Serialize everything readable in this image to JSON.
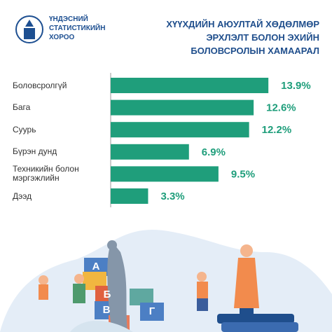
{
  "header": {
    "logo_lines": [
      "ҮНДЭСНИЙ",
      "СТАТИСТИКИЙН",
      "ХОРОО"
    ]
  },
  "chart_data": {
    "type": "bar",
    "orientation": "horizontal",
    "title_lines": [
      "ХҮҮХДИЙН АЮУЛТАЙ ХӨДӨЛМӨР",
      "ЭРХЛЭЛТ БОЛОН ЭХИЙН",
      "БОЛОВСРОЛЫН ХАМААРАЛ"
    ],
    "categories": [
      "Боловсролгүй",
      "Бага",
      "Суурь",
      "Бүрэн дунд",
      "Техникийн болон мэргэжлийн",
      "Дээд"
    ],
    "values": [
      13.9,
      12.6,
      12.2,
      6.9,
      9.5,
      3.3
    ],
    "value_labels": [
      "13.9%",
      "12.6%",
      "12.2%",
      "6.9%",
      "9.5%",
      "3.3%"
    ],
    "color": "#1f9e7b"
  },
  "illustration": {
    "letters": [
      "А",
      "Б",
      "В",
      "Г"
    ]
  }
}
